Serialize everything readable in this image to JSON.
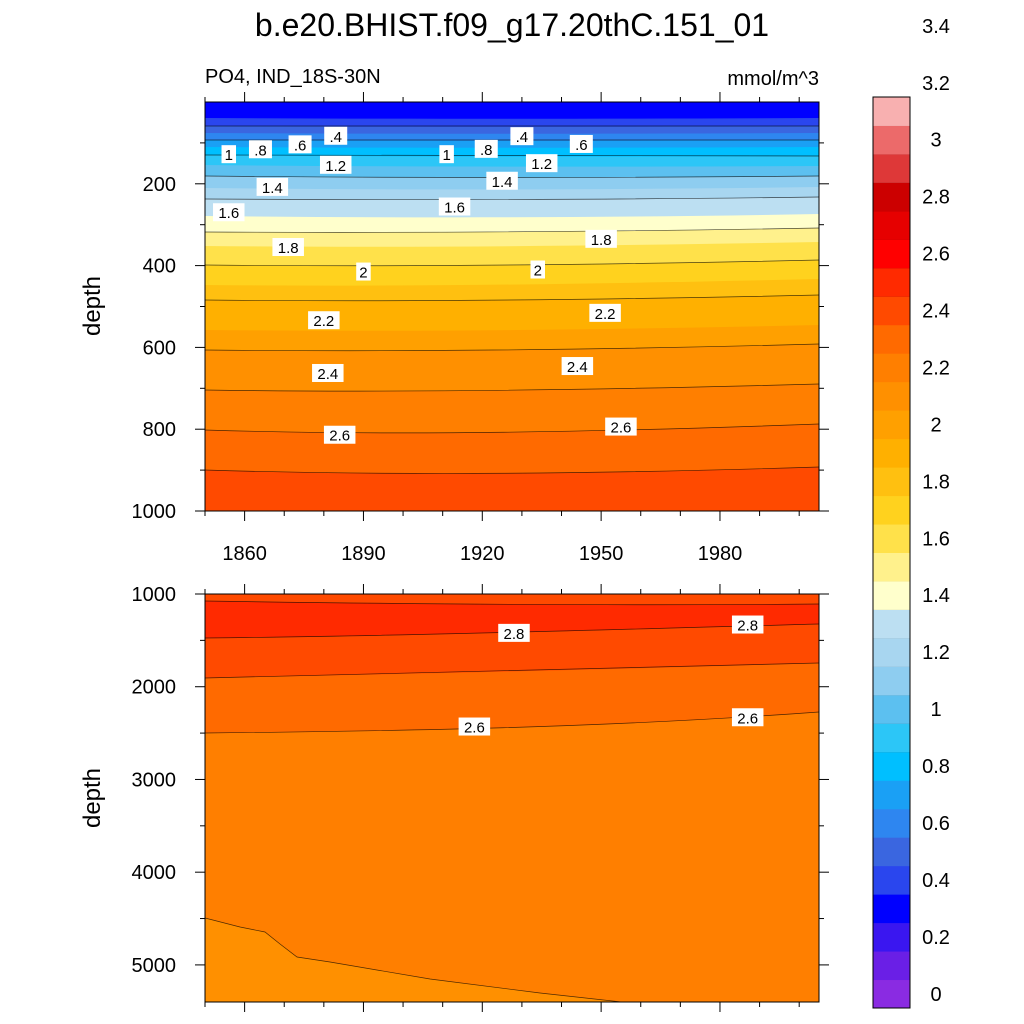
{
  "title": "b.e20.BHIST.f09_g17.20thC.151_01",
  "chart_data": {
    "type": "contour",
    "title": "b.e20.BHIST.f09_g17.20thC.151_01",
    "variable": "PO4, IND_18S-30N",
    "units": "mmol/m^3",
    "xlabel": "",
    "ylabel": "depth",
    "x_range": [
      1850,
      2005
    ],
    "x_ticks": [
      "1860",
      "1890",
      "1920",
      "1950",
      "1980"
    ],
    "colorbar": {
      "levels": [
        "0",
        "0.2",
        "0.4",
        "0.6",
        "0.8",
        "1",
        "1.2",
        "1.4",
        "1.6",
        "1.8",
        "2",
        "2.2",
        "2.4",
        "2.6",
        "2.8",
        "3",
        "3.2",
        "3.4"
      ],
      "colors": [
        "#8a2be2",
        "#6a1fe6",
        "#3a16f0",
        "#0000ff",
        "#2a46ee",
        "#3a66e0",
        "#2e86f0",
        "#1aa0f5",
        "#00bfff",
        "#2cc6f7",
        "#5cc0f0",
        "#8ecdf0",
        "#a8d6f0",
        "#bcdff2",
        "#ffffcc",
        "#fff18c",
        "#ffe14a",
        "#ffd21e",
        "#ffc010",
        "#ffb000",
        "#ffa000",
        "#ff9000",
        "#ff7f00",
        "#ff6a00",
        "#ff4a00",
        "#ff2a00",
        "#ff0000",
        "#e60000",
        "#cc0000",
        "#de3838",
        "#ec6a6a",
        "#f8b0b0"
      ]
    },
    "panels": [
      {
        "name": "upper",
        "ylim": [
          0,
          1000
        ],
        "y_ticks": [
          "200",
          "400",
          "600",
          "800",
          "1000"
        ],
        "contour_labels": [
          {
            "text": "1",
            "year": 1856,
            "depth": 130
          },
          {
            "text": ".8",
            "year": 1864,
            "depth": 118
          },
          {
            "text": ".6",
            "year": 1874,
            "depth": 106
          },
          {
            "text": ".4",
            "year": 1883,
            "depth": 85
          },
          {
            "text": "1",
            "year": 1911,
            "depth": 130
          },
          {
            "text": ".8",
            "year": 1921,
            "depth": 117
          },
          {
            "text": ".4",
            "year": 1930,
            "depth": 86
          },
          {
            "text": ".6",
            "year": 1945,
            "depth": 105
          },
          {
            "text": "1.2",
            "year": 1883,
            "depth": 156
          },
          {
            "text": "1.2",
            "year": 1935,
            "depth": 152
          },
          {
            "text": "1.4",
            "year": 1867,
            "depth": 210
          },
          {
            "text": "1.4",
            "year": 1925,
            "depth": 195
          },
          {
            "text": "1.6",
            "year": 1856,
            "depth": 272
          },
          {
            "text": "1.6",
            "year": 1913,
            "depth": 258
          },
          {
            "text": "1.8",
            "year": 1871,
            "depth": 357
          },
          {
            "text": "1.8",
            "year": 1950,
            "depth": 337
          },
          {
            "text": "2",
            "year": 1890,
            "depth": 417
          },
          {
            "text": "2",
            "year": 1934,
            "depth": 412
          },
          {
            "text": "2.2",
            "year": 1880,
            "depth": 536
          },
          {
            "text": "2.2",
            "year": 1951,
            "depth": 518
          },
          {
            "text": "2.4",
            "year": 1881,
            "depth": 665
          },
          {
            "text": "2.4",
            "year": 1944,
            "depth": 648
          },
          {
            "text": "2.6",
            "year": 1884,
            "depth": 816
          },
          {
            "text": "2.6",
            "year": 1955,
            "depth": 796
          }
        ]
      },
      {
        "name": "lower",
        "ylim": [
          1000,
          5400
        ],
        "y_ticks": [
          "1000",
          "2000",
          "3000",
          "4000",
          "5000"
        ],
        "contour_labels": [
          {
            "text": "2.8",
            "year": 1928,
            "depth": 1430
          },
          {
            "text": "2.8",
            "year": 1987,
            "depth": 1340
          },
          {
            "text": "2.6",
            "year": 1918,
            "depth": 2440
          },
          {
            "text": "2.6",
            "year": 1987,
            "depth": 2340
          }
        ]
      }
    ]
  }
}
